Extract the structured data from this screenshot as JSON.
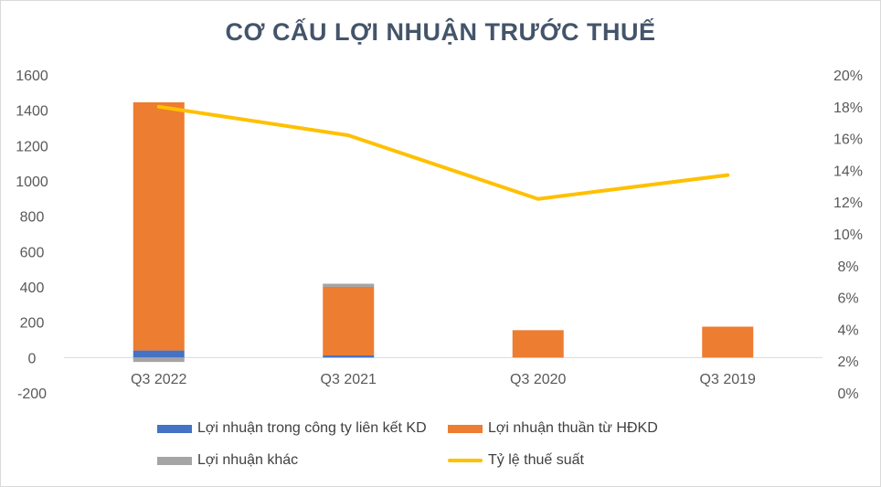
{
  "chart_data": {
    "type": "bar",
    "title": "CƠ CẤU LỢI NHUẬN TRƯỚC THUẾ",
    "categories": [
      "Q3 2022",
      "Q3 2021",
      "Q3 2020",
      "Q3 2019"
    ],
    "series": [
      {
        "name": "Lợi nhuận trong công ty liên kết KD",
        "type": "stacked-bar",
        "color": "#4472c4",
        "values": [
          40,
          12,
          0,
          0
        ]
      },
      {
        "name": "Lợi nhuận thuần từ HĐKD",
        "type": "stacked-bar",
        "color": "#ed7d31",
        "values": [
          1405,
          388,
          155,
          175
        ]
      },
      {
        "name": "Lợi nhuận khác",
        "type": "stacked-bar",
        "color": "#a5a5a5",
        "values": [
          -25,
          18,
          0,
          0
        ]
      },
      {
        "name": "Tỷ lệ thuế suất",
        "type": "line",
        "axis": "right",
        "color": "#ffc000",
        "values": [
          18.0,
          16.2,
          12.2,
          13.7
        ]
      }
    ],
    "y_left": {
      "min": -200,
      "max": 1600,
      "ticks": [
        "-200",
        "0",
        "200",
        "400",
        "600",
        "800",
        "1000",
        "1200",
        "1400",
        "1600"
      ]
    },
    "y_right": {
      "min": 0,
      "max": 20,
      "unit": "%",
      "ticks": [
        "0%",
        "2%",
        "4%",
        "6%",
        "8%",
        "10%",
        "12%",
        "14%",
        "16%",
        "18%",
        "20%"
      ]
    },
    "grid": false,
    "legend_position": "bottom"
  }
}
